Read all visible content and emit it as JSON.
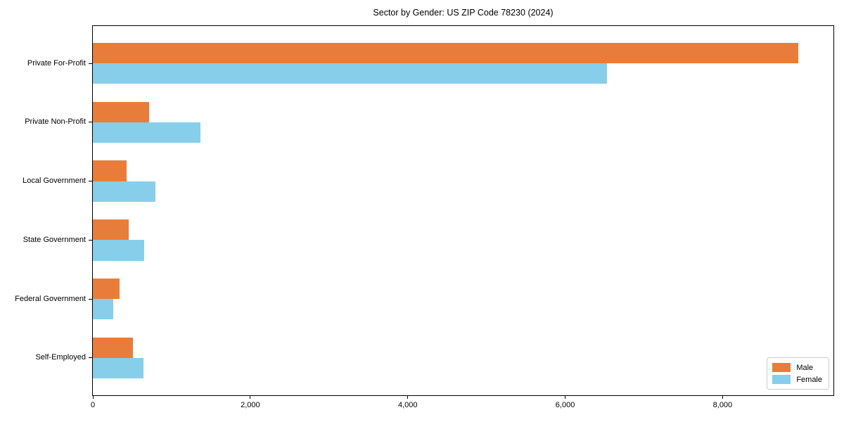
{
  "chart_data": {
    "type": "bar",
    "orientation": "horizontal",
    "title": "Sector by Gender: US ZIP Code 78230 (2024)",
    "categories": [
      "Private For-Profit",
      "Private Non-Profit",
      "Local Government",
      "State Government",
      "Federal Government",
      "Self-Employed"
    ],
    "series": [
      {
        "name": "Male",
        "color": "#E87D3B",
        "values": [
          8960,
          713,
          428,
          455,
          339,
          508
        ]
      },
      {
        "name": "Female",
        "color": "#87CEEB",
        "values": [
          6530,
          1365,
          794,
          651,
          259,
          642
        ]
      }
    ],
    "xlabel": "",
    "ylabel": "",
    "xlim": [
      0,
      9408
    ],
    "xticks": [
      0,
      2000,
      4000,
      6000,
      8000
    ],
    "xtick_labels": [
      "0",
      "2,000",
      "4,000",
      "6,000",
      "8,000"
    ],
    "grid": false,
    "legend": {
      "position": "lower right",
      "entries": [
        "Male",
        "Female"
      ]
    }
  }
}
